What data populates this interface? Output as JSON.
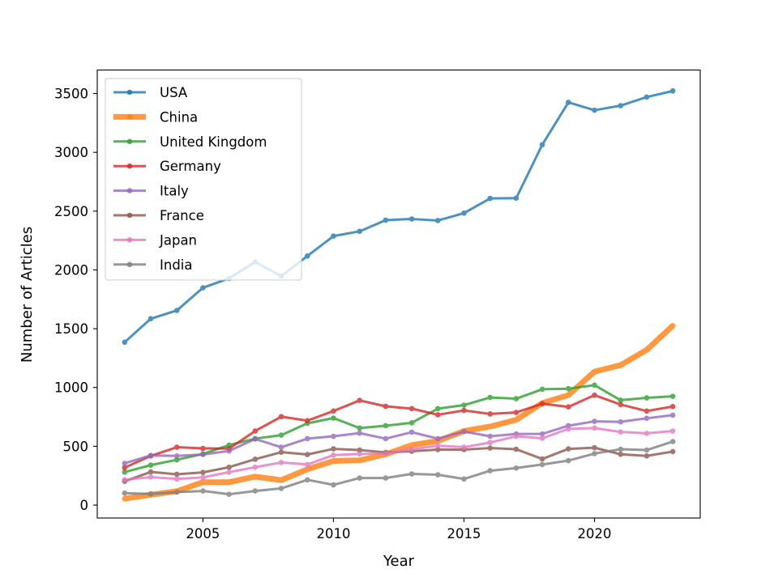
{
  "chart_data": {
    "type": "line",
    "title": "",
    "xlabel": "Year",
    "ylabel": "Number of Articles",
    "xlim": [
      2000.95,
      2024.05
    ],
    "ylim": [
      -110,
      3700
    ],
    "x_ticks": [
      2005,
      2010,
      2015,
      2020
    ],
    "y_ticks": [
      0,
      500,
      1000,
      1500,
      2000,
      2500,
      3000,
      3500
    ],
    "x_tick_labels": [
      "2005",
      "2010",
      "2015",
      "2020"
    ],
    "y_tick_labels": [
      "0",
      "500",
      "1000",
      "1500",
      "2000",
      "2500",
      "3000",
      "3500"
    ],
    "grid": false,
    "legend_position": "top-left",
    "x": [
      2002,
      2003,
      2004,
      2005,
      2006,
      2007,
      2008,
      2009,
      2010,
      2011,
      2012,
      2013,
      2014,
      2015,
      2016,
      2017,
      2018,
      2019,
      2020,
      2021,
      2022,
      2023
    ],
    "series": [
      {
        "name": "USA",
        "color": "#1f77b4",
        "emphasis": false,
        "values": [
          1385,
          1585,
          1655,
          1848,
          1928,
          2068,
          1948,
          2118,
          2288,
          2328,
          2423,
          2433,
          2420,
          2483,
          2608,
          2610,
          3065,
          3425,
          3358,
          3397,
          3470,
          3522
        ]
      },
      {
        "name": "China",
        "color": "#ff7f0e",
        "emphasis": true,
        "values": [
          55,
          88,
          118,
          195,
          195,
          242,
          212,
          305,
          375,
          380,
          432,
          510,
          545,
          630,
          668,
          725,
          868,
          935,
          1135,
          1190,
          1320,
          1525
        ]
      },
      {
        "name": "United Kingdom",
        "color": "#2ca02c",
        "emphasis": false,
        "values": [
          280,
          340,
          385,
          435,
          510,
          565,
          595,
          695,
          740,
          655,
          675,
          700,
          820,
          850,
          915,
          905,
          985,
          990,
          1020,
          892,
          912,
          925
        ]
      },
      {
        "name": "Germany",
        "color": "#d62728",
        "emphasis": false,
        "values": [
          318,
          418,
          492,
          482,
          480,
          630,
          752,
          718,
          800,
          890,
          840,
          820,
          768,
          805,
          775,
          788,
          862,
          835,
          935,
          855,
          800,
          838
        ]
      },
      {
        "name": "Italy",
        "color": "#9467bd",
        "emphasis": false,
        "values": [
          355,
          422,
          418,
          430,
          460,
          562,
          492,
          565,
          585,
          612,
          565,
          620,
          565,
          625,
          585,
          605,
          605,
          675,
          712,
          708,
          738,
          765
        ]
      },
      {
        "name": "France",
        "color": "#8c564b",
        "emphasis": false,
        "values": [
          202,
          282,
          262,
          278,
          322,
          390,
          450,
          430,
          478,
          468,
          448,
          458,
          472,
          472,
          485,
          475,
          392,
          478,
          488,
          432,
          418,
          455
        ]
      },
      {
        "name": "Japan",
        "color": "#e377c2",
        "emphasis": false,
        "values": [
          215,
          238,
          222,
          235,
          280,
          322,
          362,
          345,
          425,
          435,
          440,
          475,
          505,
          492,
          532,
          585,
          568,
          648,
          655,
          622,
          610,
          630
        ]
      },
      {
        "name": "India",
        "color": "#7f7f7f",
        "emphasis": false,
        "values": [
          102,
          95,
          110,
          120,
          92,
          120,
          142,
          215,
          172,
          230,
          230,
          265,
          258,
          222,
          292,
          315,
          345,
          378,
          438,
          475,
          468,
          540
        ]
      }
    ]
  }
}
